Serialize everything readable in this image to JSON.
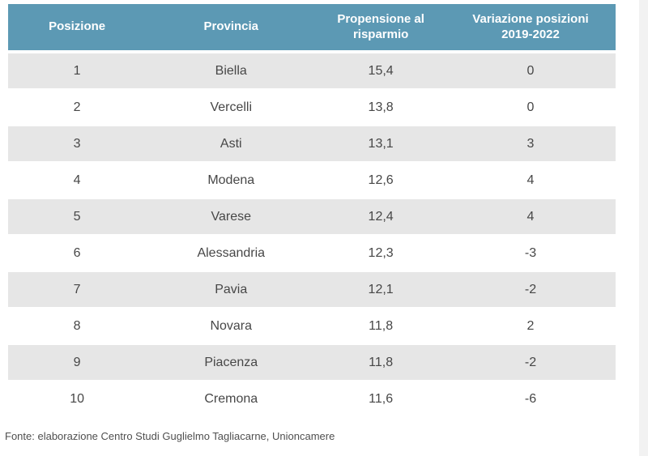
{
  "chart_data": {
    "type": "table",
    "columns": [
      "Posizione",
      "Provincia",
      "Propensione al risparmio",
      "Variazione posizioni 2019-2022"
    ],
    "rows": [
      [
        "1",
        "Biella",
        "15,4",
        "0"
      ],
      [
        "2",
        "Vercelli",
        "13,8",
        "0"
      ],
      [
        "3",
        "Asti",
        "13,1",
        "3"
      ],
      [
        "4",
        "Modena",
        "12,6",
        "4"
      ],
      [
        "5",
        "Varese",
        "12,4",
        "4"
      ],
      [
        "6",
        "Alessandria",
        "12,3",
        "-3"
      ],
      [
        "7",
        "Pavia",
        "12,1",
        "-2"
      ],
      [
        "8",
        "Novara",
        "11,8",
        "2"
      ],
      [
        "9",
        "Piacenza",
        "11,8",
        "-2"
      ],
      [
        "10",
        "Cremona",
        "11,6",
        "-6"
      ]
    ],
    "layout_hints": {
      "striped_rows": true,
      "header_style": "solid-fill"
    }
  },
  "footer": {
    "source_label": "Fonte: elaborazione Centro Studi Guglielmo Tagliacarne, Unioncamere"
  },
  "colors": {
    "header_bg": "#5c99b4",
    "header_text": "#ffffff",
    "row_bg": "#ffffff",
    "row_alt_bg": "#e6e6e6",
    "body_text": "#474747",
    "footer_text": "#4f4f4f",
    "right_margin_strip": "#f2f2f2"
  }
}
